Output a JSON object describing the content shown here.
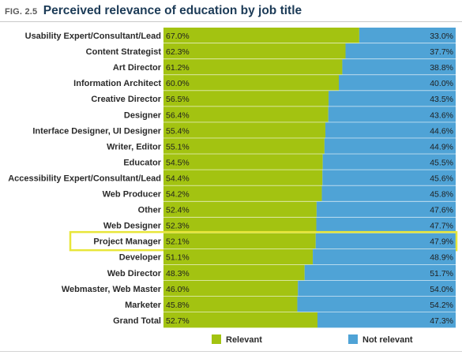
{
  "figure": {
    "number": "FIG. 2.5",
    "title": "Perceived relevance of education by job title"
  },
  "chart_data": {
    "type": "bar",
    "orientation": "horizontal",
    "stacked": true,
    "title": "Perceived relevance of education by job title",
    "xlim": [
      0,
      100
    ],
    "categories": [
      "Usability Expert/Consultant/Lead",
      "Content Strategist",
      "Art Director",
      "Information Architect",
      "Creative Director",
      "Designer",
      "Interface Designer, UI Designer",
      "Writer, Editor",
      "Educator",
      "Accessibility Expert/Consultant/Lead",
      "Web Producer",
      "Other",
      "Web Designer",
      "Project Manager",
      "Developer",
      "Web Director",
      "Webmaster, Web Master",
      "Marketer",
      "Grand Total"
    ],
    "series": [
      {
        "name": "Relevant",
        "color": "#a3c311",
        "values": [
          67.0,
          62.3,
          61.2,
          60.0,
          56.5,
          56.4,
          55.4,
          55.1,
          54.5,
          54.4,
          54.2,
          52.4,
          52.3,
          52.1,
          51.1,
          48.3,
          46.0,
          45.8,
          52.7
        ],
        "labels": [
          "67.0%",
          "62.3%",
          "61.2%",
          "60.0%",
          "56.5%",
          "56.4%",
          "55.4%",
          "55.1%",
          "54.5%",
          "54.4%",
          "54.2%",
          "52.4%",
          "52.3%",
          "52.1%",
          "51.1%",
          "48.3%",
          "46.0%",
          "45.8%",
          "52.7%"
        ]
      },
      {
        "name": "Not relevant",
        "color": "#4fa3d6",
        "values": [
          33.0,
          37.7,
          38.8,
          40.0,
          43.5,
          43.6,
          44.6,
          44.9,
          45.5,
          45.6,
          45.8,
          47.6,
          47.7,
          47.9,
          48.9,
          51.7,
          54.0,
          54.2,
          47.3
        ],
        "labels": [
          "33.0%",
          "37.7%",
          "38.8%",
          "40.0%",
          "43.5%",
          "43.6%",
          "44.6%",
          "44.9%",
          "45.5%",
          "45.6%",
          "45.8%",
          "47.6%",
          "47.7%",
          "47.9%",
          "48.9%",
          "51.7%",
          "54.0%",
          "54.2%",
          "47.3%"
        ]
      }
    ],
    "highlight": "Project Manager",
    "highlight_color": "#e8e63a",
    "legend": {
      "position": "bottom",
      "items": [
        "Relevant",
        "Not relevant"
      ]
    }
  }
}
